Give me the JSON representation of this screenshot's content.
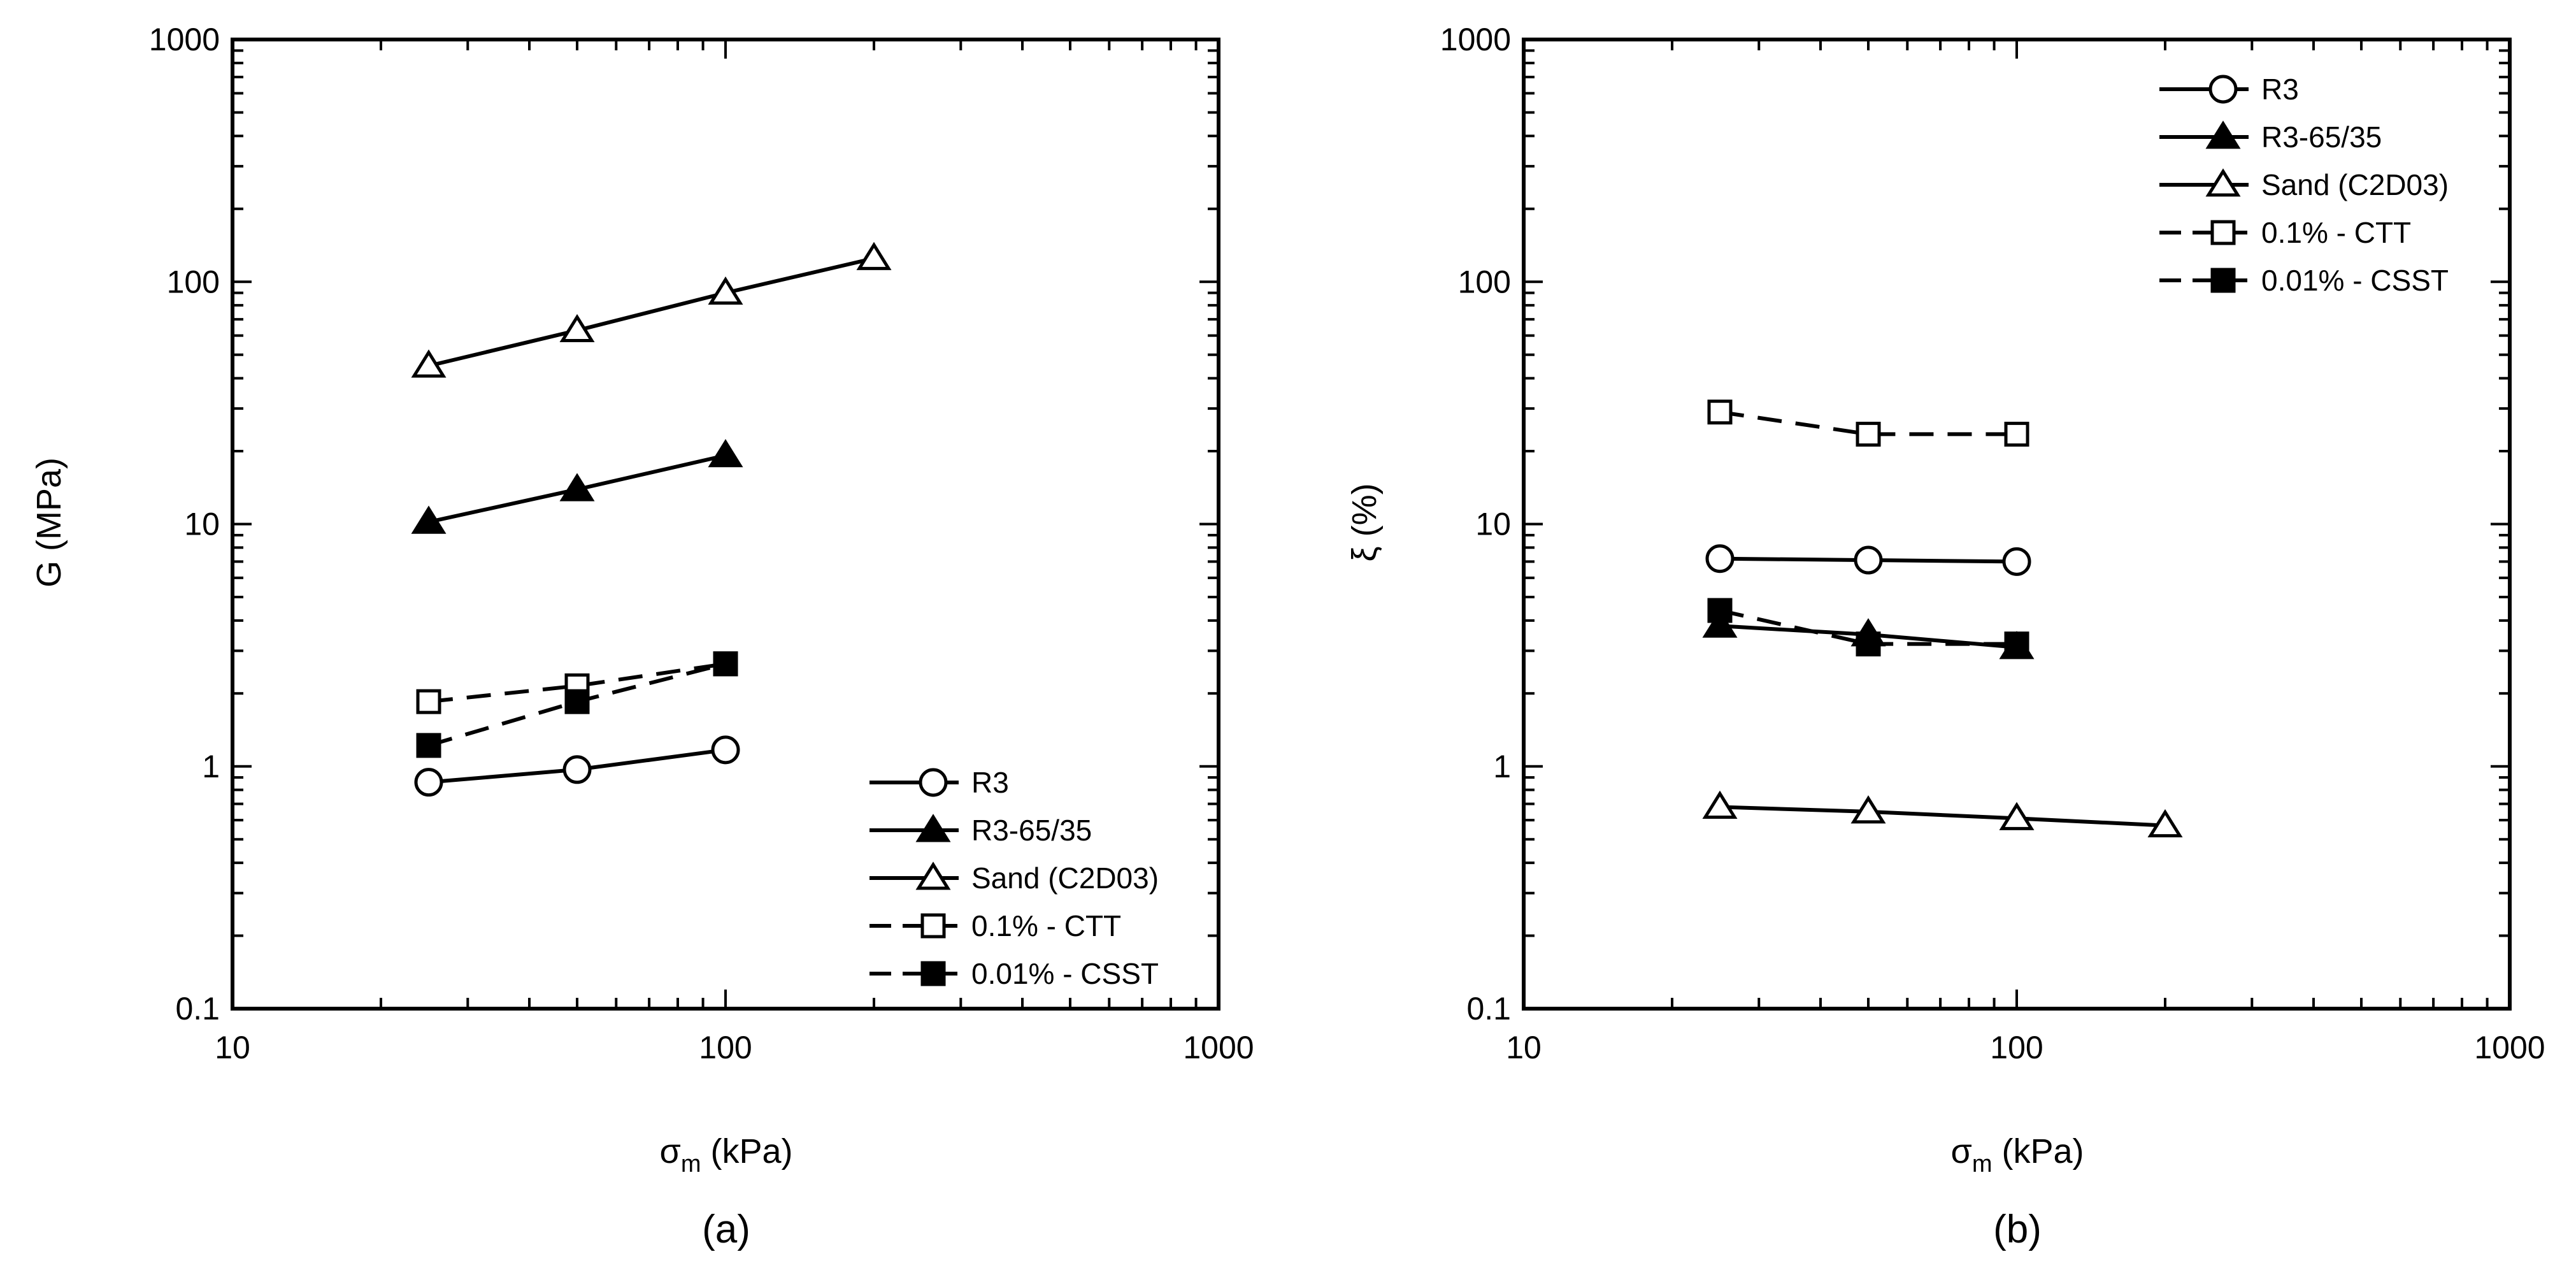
{
  "chart_data": [
    {
      "type": "line",
      "panel_label": "(a)",
      "title": "",
      "xlabel": "σm (kPa)",
      "xlabel_main": "σ",
      "xlabel_sub": "m",
      "xlabel_unit": " (kPa)",
      "ylabel": "G (MPa)",
      "xscale": "log",
      "yscale": "log",
      "xlim": [
        10,
        1000
      ],
      "ylim": [
        0.1,
        1000
      ],
      "x_ticks": [
        "10",
        "100",
        "1000"
      ],
      "y_ticks": [
        "0.1",
        "1",
        "10",
        "100",
        "1000"
      ],
      "legend_position": "lower-right",
      "series": [
        {
          "name": "R3",
          "marker": "circle-open",
          "linestyle": "solid",
          "x": [
            25,
            50,
            100
          ],
          "y": [
            0.86,
            0.97,
            1.17
          ]
        },
        {
          "name": "R3-65/35",
          "marker": "triangle-filled",
          "linestyle": "solid",
          "x": [
            25,
            50,
            100
          ],
          "y": [
            10.2,
            13.9,
            19.2
          ]
        },
        {
          "name": "Sand (C2D03)",
          "marker": "triangle-open",
          "linestyle": "solid",
          "x": [
            25,
            50,
            100,
            200
          ],
          "y": [
            45,
            63,
            90,
            125
          ]
        },
        {
          "name": "0.1% - CTT",
          "marker": "square-open",
          "linestyle": "dashed",
          "x": [
            25,
            50,
            100
          ],
          "y": [
            1.85,
            2.15,
            2.65
          ]
        },
        {
          "name": "0.01% - CSST",
          "marker": "square-filled",
          "linestyle": "dashed",
          "x": [
            25,
            50,
            100
          ],
          "y": [
            1.22,
            1.85,
            2.65
          ]
        }
      ]
    },
    {
      "type": "line",
      "panel_label": "(b)",
      "title": "",
      "xlabel": "σm (kPa)",
      "xlabel_main": "σ",
      "xlabel_sub": "m",
      "xlabel_unit": " (kPa)",
      "ylabel": "ξ (%)",
      "xscale": "log",
      "yscale": "log",
      "xlim": [
        10,
        1000
      ],
      "ylim": [
        0.1,
        1000
      ],
      "x_ticks": [
        "10",
        "100",
        "1000"
      ],
      "y_ticks": [
        "0.1",
        "1",
        "10",
        "100",
        "1000"
      ],
      "legend_position": "top-right",
      "series": [
        {
          "name": "R3",
          "marker": "circle-open",
          "linestyle": "solid",
          "x": [
            25,
            50,
            100
          ],
          "y": [
            7.2,
            7.1,
            7.0
          ]
        },
        {
          "name": "R3-65/35",
          "marker": "triangle-filled",
          "linestyle": "solid",
          "x": [
            25,
            50,
            100
          ],
          "y": [
            3.8,
            3.5,
            3.1
          ]
        },
        {
          "name": "Sand (C2D03)",
          "marker": "triangle-open",
          "linestyle": "solid",
          "x": [
            25,
            50,
            100,
            200
          ],
          "y": [
            0.68,
            0.65,
            0.61,
            0.57
          ]
        },
        {
          "name": "0.1% - CTT",
          "marker": "square-open",
          "linestyle": "dashed",
          "x": [
            25,
            50,
            100
          ],
          "y": [
            29,
            23.5,
            23.5
          ]
        },
        {
          "name": "0.01% - CSST",
          "marker": "square-filled",
          "linestyle": "dashed",
          "x": [
            25,
            50,
            100
          ],
          "y": [
            4.4,
            3.2,
            3.2
          ]
        }
      ]
    }
  ]
}
